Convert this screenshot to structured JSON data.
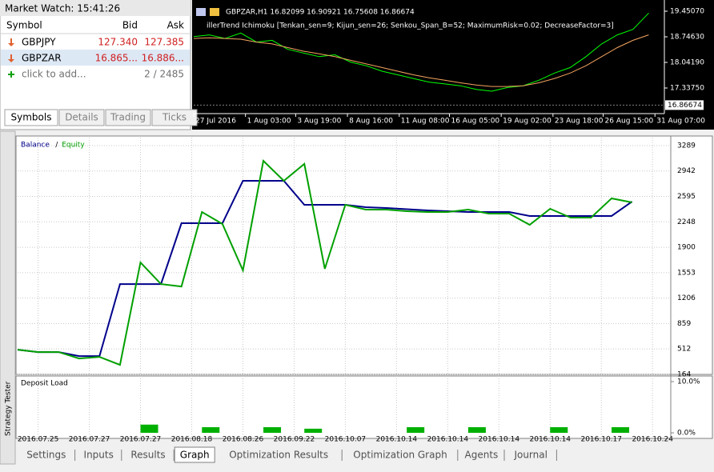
{
  "market_watch": {
    "title": "Market Watch: 15:41:26",
    "columns": [
      "Symbol",
      "Bid",
      "Ask"
    ],
    "rows": [
      [
        "GBPJPY",
        "127.340",
        "127.385"
      ],
      [
        "GBPZAR",
        "16.865...",
        "16.886..."
      ]
    ],
    "add_label": "click to add...",
    "count": "2 / 2485",
    "tabs": [
      "Symbols",
      "Details",
      "Trading",
      "Ticks"
    ]
  },
  "chart_data": [
    {
      "type": "line",
      "title": "GBPZAR,H1  16.82099 16.90921 16.75608 16.86674",
      "subtitle": "illerTrend Ichimoku [Tenkan_sen=9; Kijun_sen=26; Senkou_Span_B=52; MaximumRisk=0.02; DecreaseFactor=3]",
      "x": [
        0,
        1,
        2,
        3,
        4,
        5,
        6,
        7,
        8,
        9,
        10,
        11,
        12,
        13,
        14,
        15,
        16,
        17,
        18,
        19,
        20,
        21,
        22,
        23,
        24,
        25,
        26,
        27,
        28,
        29
      ],
      "series": [
        {
          "color": "#00ff00",
          "values": [
            18.75,
            18.8,
            18.7,
            18.85,
            18.6,
            18.65,
            18.4,
            18.3,
            18.2,
            18.25,
            18.05,
            17.95,
            17.8,
            17.7,
            17.6,
            17.5,
            17.45,
            17.4,
            17.3,
            17.25,
            17.35,
            17.4,
            17.55,
            17.75,
            17.9,
            18.2,
            18.55,
            18.8,
            18.95,
            19.4
          ]
        },
        {
          "color": "#f4a460",
          "values": [
            18.7,
            18.72,
            18.7,
            18.68,
            18.6,
            18.55,
            18.45,
            18.35,
            18.28,
            18.2,
            18.1,
            18.0,
            17.9,
            17.8,
            17.7,
            17.62,
            17.55,
            17.48,
            17.42,
            17.38,
            17.38,
            17.4,
            17.48,
            17.6,
            17.75,
            17.95,
            18.2,
            18.45,
            18.65,
            18.8
          ]
        }
      ],
      "xlim": [
        0,
        30
      ],
      "xticks": [
        {
          "value": 0,
          "label": "27 Jul 2016"
        },
        {
          "value": 3.3,
          "label": "1 Aug 03:00"
        },
        {
          "value": 6.5,
          "label": "3 Aug 19:00"
        },
        {
          "value": 9.8,
          "label": "8 Aug 16:00"
        },
        {
          "value": 13.1,
          "label": "11 Aug 08:00"
        },
        {
          "value": 16.3,
          "label": "16 Aug 05:00"
        },
        {
          "value": 19.6,
          "label": "19 Aug 02:00"
        },
        {
          "value": 22.9,
          "label": "23 Aug 18:00"
        },
        {
          "value": 26.1,
          "label": "26 Aug 15:00"
        },
        {
          "value": 29.4,
          "label": "31 Aug 07:00"
        }
      ],
      "ylim": [
        16.633,
        19.759
      ],
      "yticks": [
        {
          "value": 19.4507,
          "label": "19.45070"
        },
        {
          "value": 18.7463,
          "label": "18.74630"
        },
        {
          "value": 18.0419,
          "label": "18.04190"
        },
        {
          "value": 17.3375,
          "label": "17.33750"
        }
      ],
      "last_value": 16.86674
    },
    {
      "type": "line",
      "x": [
        0,
        1,
        2,
        3,
        4,
        5,
        6,
        7,
        8,
        9,
        10,
        11,
        12,
        13,
        14,
        15,
        16,
        17,
        18,
        19,
        20,
        21,
        22,
        23,
        24,
        25,
        26,
        27,
        28,
        29,
        30
      ],
      "series": [
        {
          "name": "Balance",
          "color": "#00008b",
          "values": [
            502,
            469,
            469,
            414,
            414,
            1398,
            1398,
            1398,
            2229,
            2229,
            2229,
            2808,
            2808,
            2808,
            2480,
            2480,
            2480,
            2448,
            2436,
            2420,
            2404,
            2393,
            2382,
            2382,
            2382,
            2327,
            2327,
            2327,
            2327,
            2327,
            2524
          ]
        },
        {
          "name": "Equity",
          "color": "#00a000",
          "values": [
            502,
            469,
            469,
            381,
            403,
            294,
            1693,
            1398,
            1365,
            2382,
            2218,
            1584,
            3081,
            2808,
            3038,
            1606,
            2480,
            2415,
            2415,
            2393,
            2382,
            2382,
            2415,
            2360,
            2360,
            2207,
            2426,
            2305,
            2305,
            2568,
            2513
          ]
        }
      ],
      "legend_separator": "/",
      "xlim": [
        0,
        31.5
      ],
      "xticks": [
        {
          "value": 1,
          "label": "2016.07.25"
        },
        {
          "value": 3.5,
          "label": "2016.07.27"
        },
        {
          "value": 6,
          "label": "2016.07.27"
        },
        {
          "value": 8.5,
          "label": "2016.08.18"
        },
        {
          "value": 11,
          "label": "2016.08.26"
        },
        {
          "value": 13.5,
          "label": "2016.09.22"
        },
        {
          "value": 16,
          "label": "2016.10.07"
        },
        {
          "value": 18.5,
          "label": "2016.10.14"
        },
        {
          "value": 21,
          "label": "2016.10.14"
        },
        {
          "value": 23.5,
          "label": "2016.10.14"
        },
        {
          "value": 26,
          "label": "2016.10.14"
        },
        {
          "value": 28.5,
          "label": "2016.10.17"
        },
        {
          "value": 31,
          "label": "2016.10.24"
        }
      ],
      "ylim": [
        164,
        3398
      ],
      "yticks": [
        3289,
        2942,
        2595,
        2248,
        1900,
        1553,
        1206,
        859,
        512,
        164
      ],
      "grid": true
    },
    {
      "type": "bar",
      "title": "Deposit Load",
      "color": "#00b000",
      "x": [
        6,
        9,
        12,
        14,
        19,
        22,
        26,
        29
      ],
      "values": [
        1.6,
        1.1,
        1.1,
        0.8,
        1.1,
        1.1,
        1.1,
        1.1
      ],
      "xlim": [
        0,
        31.5
      ],
      "ylim": [
        0,
        10
      ],
      "yticks": [
        {
          "value": 10,
          "label": "10.0%"
        },
        {
          "value": 0,
          "label": "0.0%"
        }
      ]
    }
  ],
  "tester": {
    "side_label": "Strategy Tester",
    "tabs": [
      "Settings",
      "Inputs",
      "Results",
      "Graph",
      "Optimization Results",
      "Optimization Graph",
      "Agents",
      "Journal"
    ],
    "active_tab": 3
  }
}
